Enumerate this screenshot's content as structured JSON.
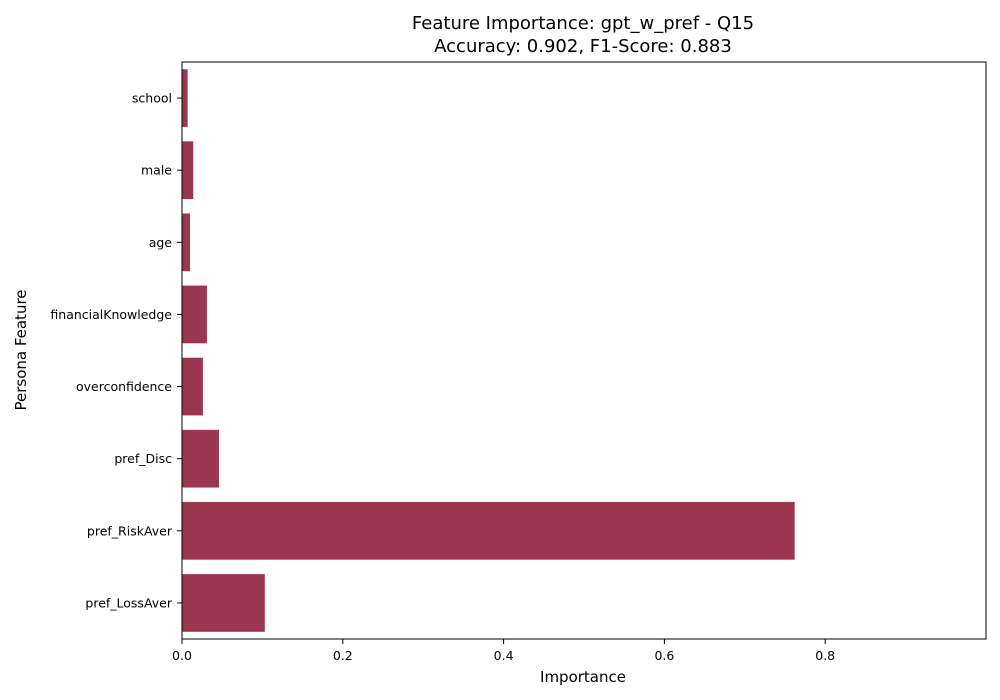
{
  "chart_data": {
    "type": "bar",
    "orientation": "horizontal",
    "title": "Feature Importance: gpt_w_pref - Q15",
    "subtitle": "Accuracy: 0.902, F1-Score: 0.883",
    "xlabel": "Importance",
    "ylabel": "Persona Feature",
    "categories": [
      "school",
      "male",
      "age",
      "financialKnowledge",
      "overconfidence",
      "pref_Disc",
      "pref_RiskAver",
      "pref_LossAver"
    ],
    "values": [
      0.007,
      0.014,
      0.01,
      0.031,
      0.026,
      0.046,
      0.762,
      0.103
    ],
    "xlim": [
      0,
      1.0
    ],
    "xticks": [
      0.0,
      0.2,
      0.4,
      0.6,
      0.8
    ],
    "xtick_labels": [
      "0.0",
      "0.2",
      "0.4",
      "0.6",
      "0.8"
    ],
    "bar_color": "#9b3650",
    "grid": false,
    "legend": "none"
  }
}
